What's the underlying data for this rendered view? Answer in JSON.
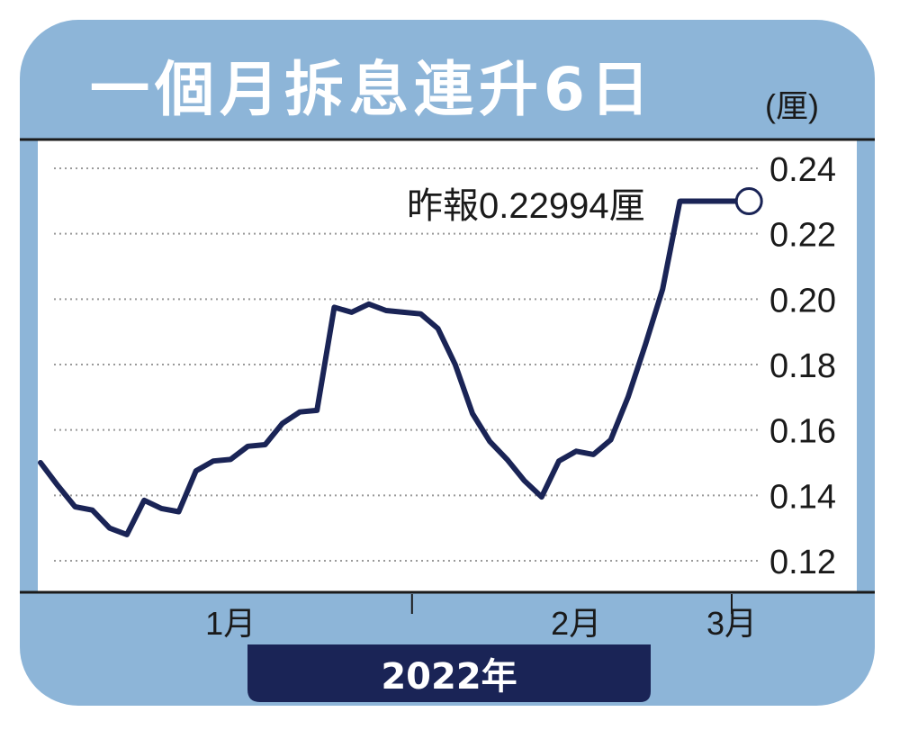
{
  "colors": {
    "panel": "#8db5d8",
    "plot_bg": "#ffffff",
    "line": "#1a2456",
    "title_text": "#ffffff",
    "year_bar": "#1a2456",
    "year_text": "#ffffff",
    "grid": "#9a9a9a"
  },
  "chart_data": {
    "type": "line",
    "title": "一個月拆息連升6日",
    "ylabel": "(厘)",
    "xlabel": "2022年",
    "ylim": [
      0.11,
      0.25
    ],
    "yticks": [
      "0.24",
      "0.22",
      "0.20",
      "0.18",
      "0.16",
      "0.14",
      "0.12"
    ],
    "ytick_values": [
      0.24,
      0.22,
      0.2,
      0.18,
      0.16,
      0.14,
      0.12
    ],
    "grid": true,
    "xticks": [
      {
        "label": "1月",
        "index": 11
      },
      {
        "label": "2月",
        "index": 31
      },
      {
        "label": "3月",
        "index": 40
      }
    ],
    "x_divider_indices": [
      21.5,
      40
    ],
    "series": [
      {
        "values": [
          0.15,
          0.143,
          0.1365,
          0.1355,
          0.13,
          0.128,
          0.1385,
          0.136,
          0.135,
          0.1475,
          0.1505,
          0.151,
          0.155,
          0.1555,
          0.162,
          0.1655,
          0.166,
          0.1975,
          0.196,
          0.1985,
          0.1965,
          0.196,
          0.1955,
          0.191,
          0.18,
          0.165,
          0.1565,
          0.151,
          0.1445,
          0.1395,
          0.1505,
          0.1535,
          0.1525,
          0.157,
          0.17,
          0.186,
          0.203,
          0.22994
        ]
      }
    ],
    "annotation": {
      "text": "昨報0.22994厘",
      "index": 41,
      "value": 0.22994
    }
  }
}
